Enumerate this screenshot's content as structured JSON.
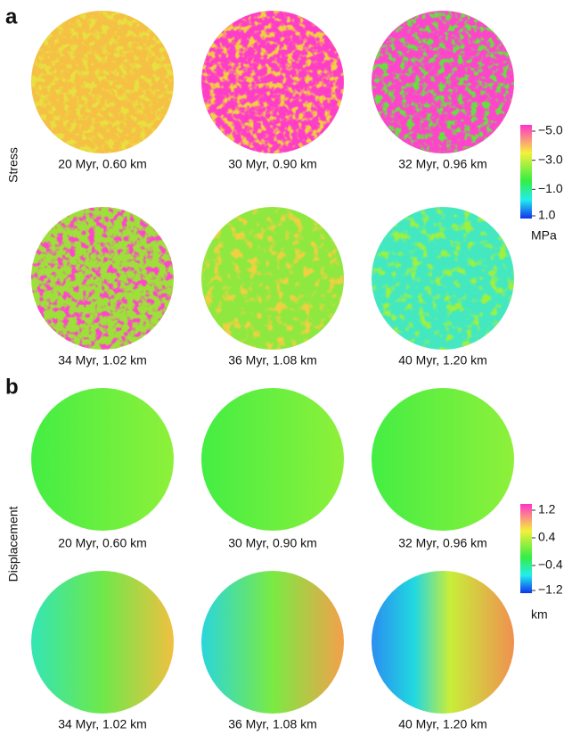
{
  "panels": [
    {
      "label": "a",
      "side_label": "Stress",
      "captions": [
        "20 Myr, 0.60 km",
        "30 Myr, 0.90 km",
        "32 Myr, 0.96 km",
        "34 Myr, 1.02 km",
        "36 Myr, 1.08 km",
        "40 Myr, 1.20 km"
      ],
      "colorbar": {
        "ticks": [
          "−5.0",
          "−3.0",
          "−1.0",
          "1.0"
        ],
        "unit": "MPa"
      }
    },
    {
      "label": "b",
      "side_label": "Displacement",
      "captions": [
        "20 Myr, 0.60 km",
        "30 Myr, 0.90 km",
        "32 Myr, 0.96 km",
        "34 Myr, 1.02 km",
        "36 Myr, 1.08 km",
        "40 Myr, 1.20 km"
      ],
      "colorbar": {
        "ticks": [
          "1.2",
          "0.4",
          "−0.4",
          "−1.2"
        ],
        "unit": "km"
      }
    }
  ]
}
